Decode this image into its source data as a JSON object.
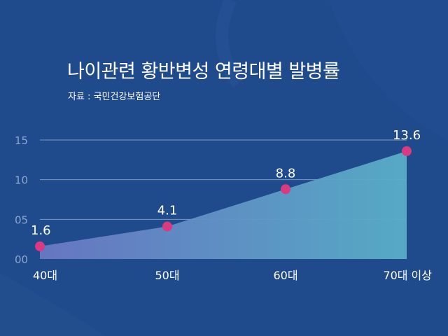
{
  "title": "나이관련 황반변성 연령대별 발병률",
  "source": "자료 : 국민건강보험공단",
  "colors": {
    "background": "#1f4a8c",
    "area_left": "#6a78c4",
    "area_right": "#58aec8",
    "marker": "#d93a82",
    "grid": "#9fb4d6",
    "tick_text": "#8fa6cf",
    "label_text": "#ffffff"
  },
  "chart_data": {
    "type": "area",
    "title": "나이관련 황반변성 연령대별 발병률",
    "subtitle": "자료 : 국민건강보험공단",
    "categories": [
      "40대",
      "50대",
      "60대",
      "70대 이상"
    ],
    "values": [
      1.6,
      4.1,
      8.8,
      13.6
    ],
    "data_labels": [
      "1.6",
      "4.1",
      "8.8",
      "13.6"
    ],
    "y_ticks": [
      0,
      5,
      10,
      15
    ],
    "y_tick_labels": [
      "00",
      "05",
      "10",
      "15"
    ],
    "ylim": [
      0,
      15
    ],
    "xlabel": "",
    "ylabel": "",
    "grid": true,
    "legend": "none"
  }
}
